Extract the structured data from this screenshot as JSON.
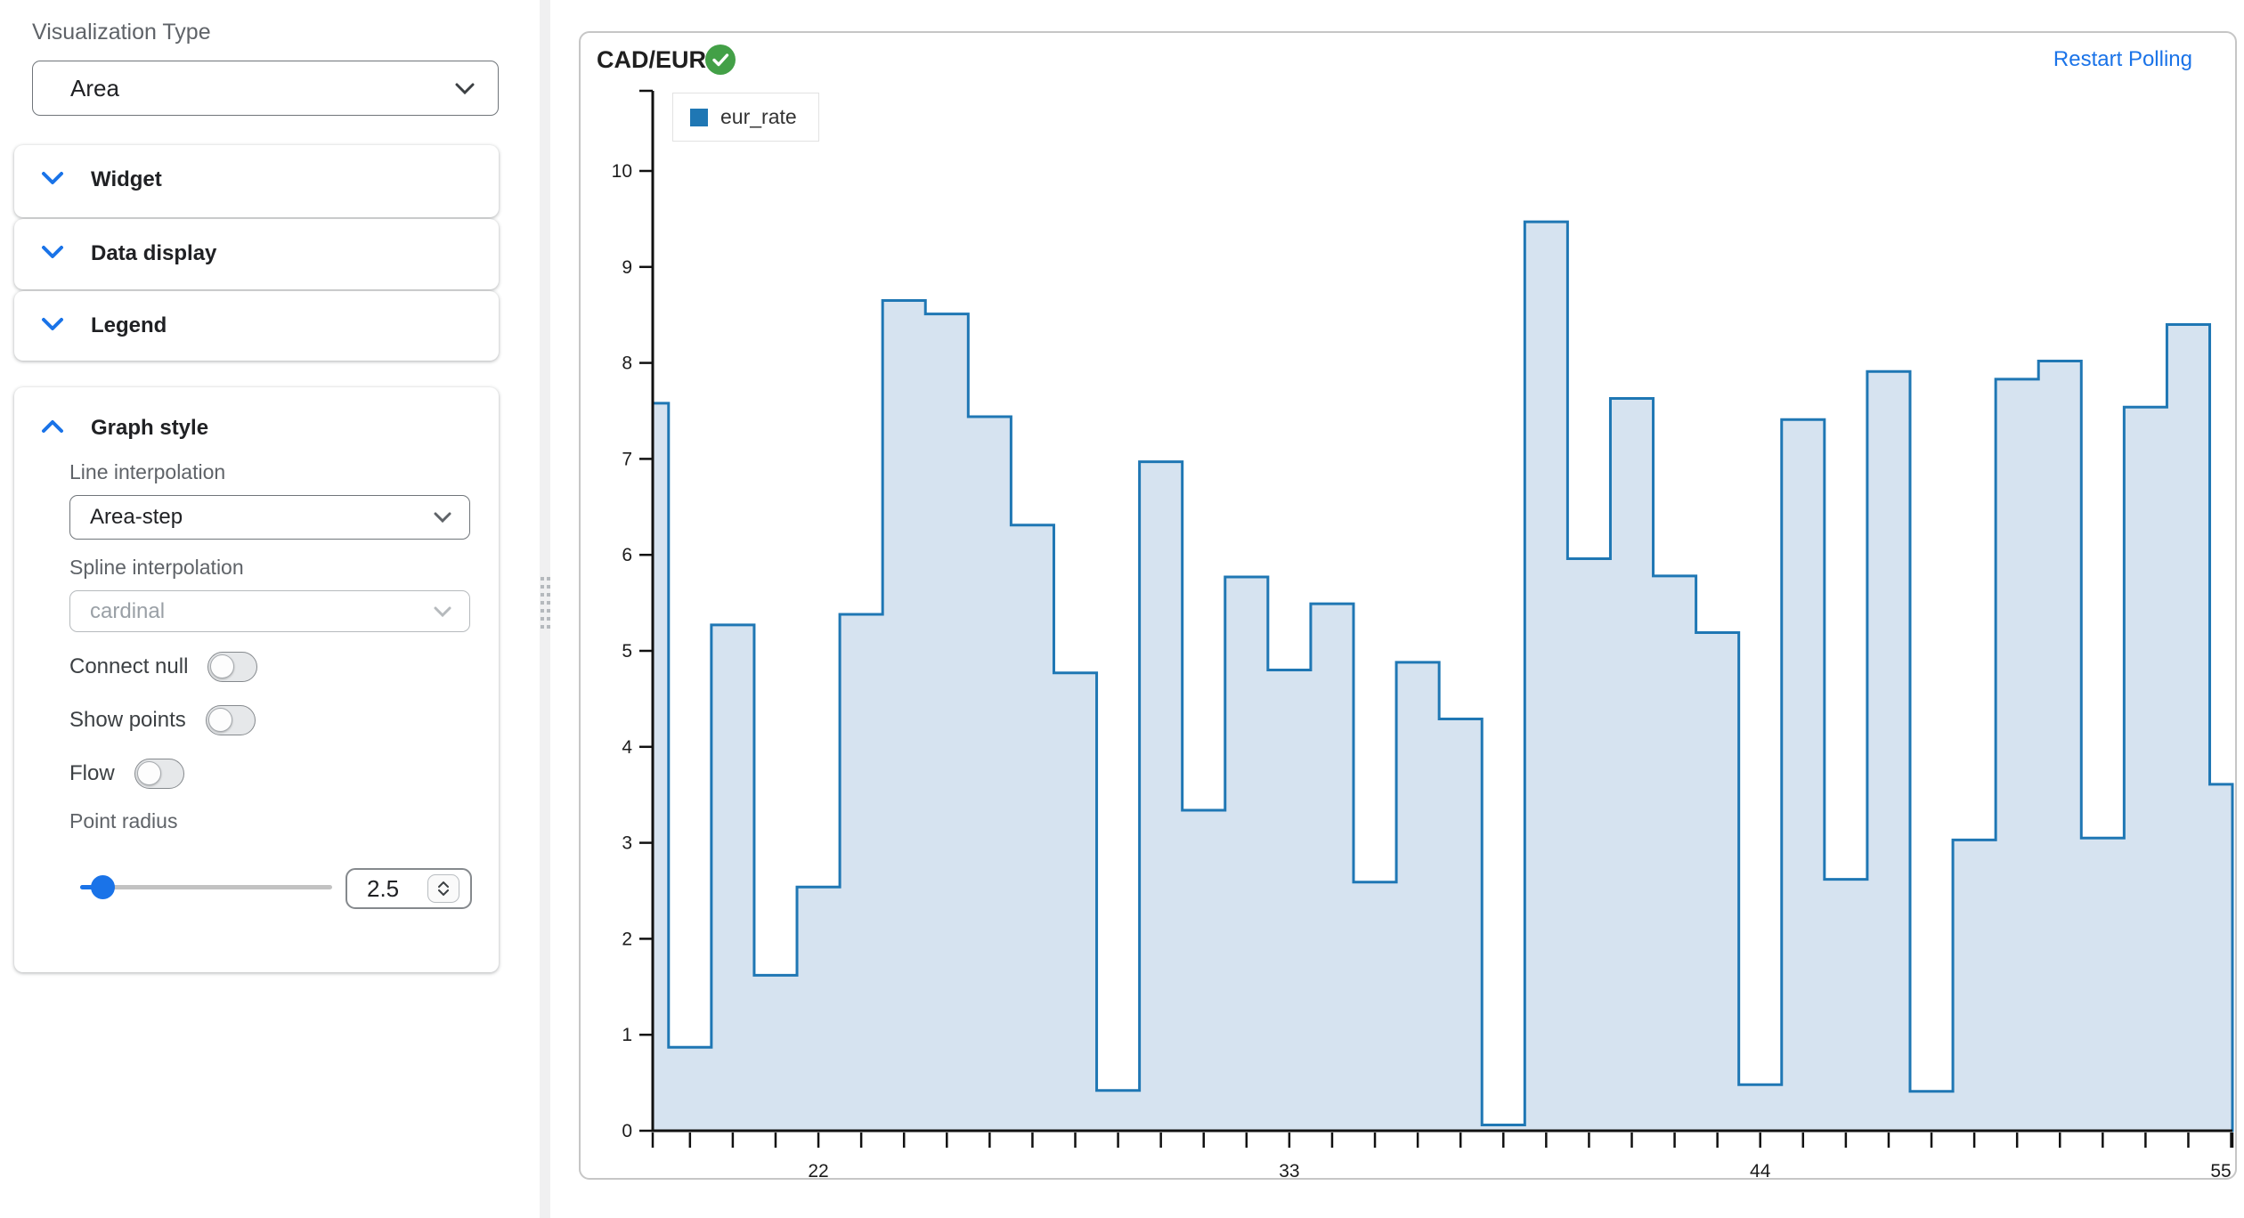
{
  "sidebar": {
    "visualization_type_label": "Visualization Type",
    "visualization_type_value": "Area",
    "sections": [
      {
        "label": "Widget"
      },
      {
        "label": "Data display"
      },
      {
        "label": "Legend"
      }
    ],
    "graph_style": {
      "title": "Graph style",
      "line_interpolation_label": "Line interpolation",
      "line_interpolation_value": "Area-step",
      "spline_interpolation_label": "Spline interpolation",
      "spline_interpolation_value": "cardinal",
      "toggles": [
        {
          "label": "Connect null",
          "on": false
        },
        {
          "label": "Show points",
          "on": false
        },
        {
          "label": "Flow",
          "on": false
        }
      ],
      "point_radius_label": "Point radius",
      "point_radius_value": "2.5"
    }
  },
  "chart_panel": {
    "title": "CAD/EUR",
    "status_icon": "check-circle",
    "status_color": "#43a047",
    "restart_link": "Restart Polling",
    "legend": [
      {
        "name": "eur_rate",
        "color": "#1f77b4"
      }
    ]
  },
  "chart_data": {
    "type": "area",
    "curve": "area-step",
    "title": "CAD/EUR",
    "series": [
      {
        "name": "eur_rate",
        "x": [
          18,
          19,
          20,
          21,
          22,
          23,
          24,
          25,
          26,
          27,
          28,
          29,
          30,
          31,
          32,
          33,
          34,
          35,
          36,
          37,
          38,
          39,
          40,
          41,
          42,
          43,
          44,
          45,
          46,
          47,
          48,
          49,
          50,
          51,
          52,
          53,
          54,
          55
        ],
        "values": [
          7.58,
          0.87,
          5.27,
          1.62,
          2.54,
          5.38,
          8.65,
          8.51,
          7.44,
          6.31,
          4.77,
          0.42,
          6.97,
          3.34,
          5.77,
          4.8,
          5.49,
          2.59,
          4.88,
          4.29,
          0.06,
          9.47,
          5.96,
          7.63,
          5.78,
          5.19,
          0.48,
          7.41,
          2.62,
          7.91,
          0.41,
          3.03,
          7.83,
          8.02,
          3.05,
          7.54,
          8.4,
          3.61
        ]
      }
    ],
    "xlim": [
      18.13,
      55.03
    ],
    "ylim": [
      0,
      10
    ],
    "x_ticks_labeled": [
      22,
      33,
      44,
      55
    ],
    "x_minor_tick_step": 1,
    "y_tick_step": 1,
    "grid": false,
    "legend_position": "inset-top-left",
    "colors": {
      "line": "#1f77b4",
      "fill": "#d6e3f0",
      "axis": "#111111",
      "tick_label": "#1c1c1c"
    }
  }
}
